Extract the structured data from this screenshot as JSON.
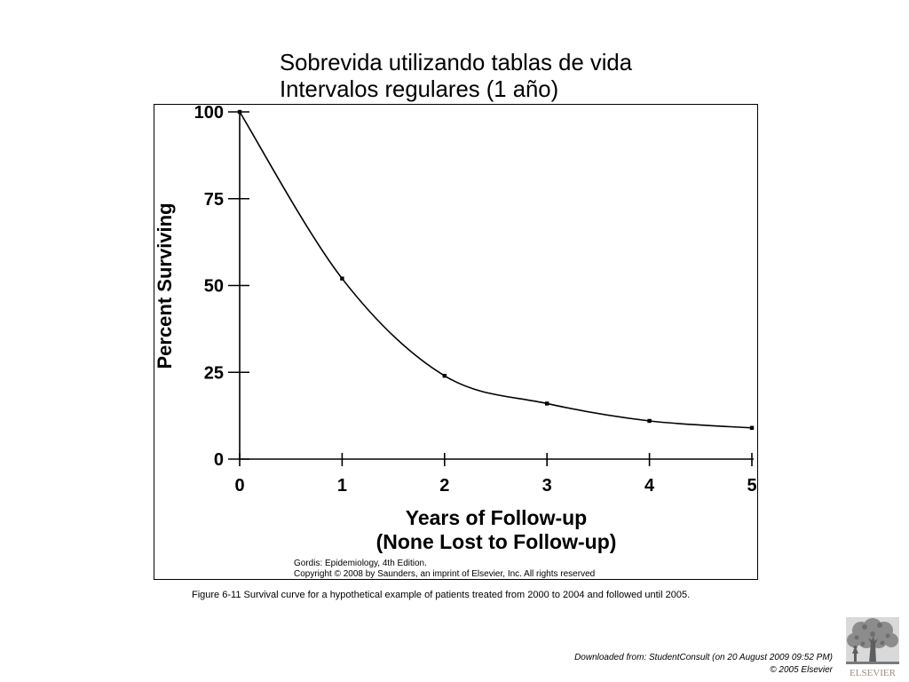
{
  "slide": {
    "title_lines": [
      "Sobrevida utilizando tablas de vida",
      "Intervalos regulares (1 año)"
    ],
    "caption": "Figure 6-11 Survival curve for a hypothetical example of patients treated from 2000 to 2004 and followed until 2005.",
    "source_lines": [
      "Downloaded from: StudentConsult (on 20 August 2009 09:52 PM)",
      "© 2005 Elsevier"
    ],
    "logo": {
      "icon": "elsevier-tree-logo",
      "text": "ELSEVIER"
    }
  },
  "colors": {
    "background": "#ffffff",
    "ink": "#000000",
    "logo": "#8c8c8c",
    "logo_text": "#9c8f84"
  },
  "chart_data": {
    "type": "line",
    "x": [
      0,
      1,
      2,
      3,
      4,
      5
    ],
    "series": [
      {
        "values": [
          100,
          52,
          24,
          16,
          11,
          9
        ]
      }
    ],
    "xlabel": [
      "Years of Follow-up",
      "(None Lost to Follow-up)"
    ],
    "ylabel": "Percent Surviving",
    "x_ticks": [
      0,
      1,
      2,
      3,
      4,
      5
    ],
    "y_ticks": [
      0,
      25,
      50,
      75,
      100
    ],
    "xlim": [
      0,
      5
    ],
    "ylim": [
      0,
      100
    ],
    "grid": false,
    "credit_lines": [
      "Gordis: Epidemiology, 4th Edition.",
      "Copyright © 2008 by Saunders, an imprint of Elsevier, Inc. All rights reserved"
    ]
  }
}
